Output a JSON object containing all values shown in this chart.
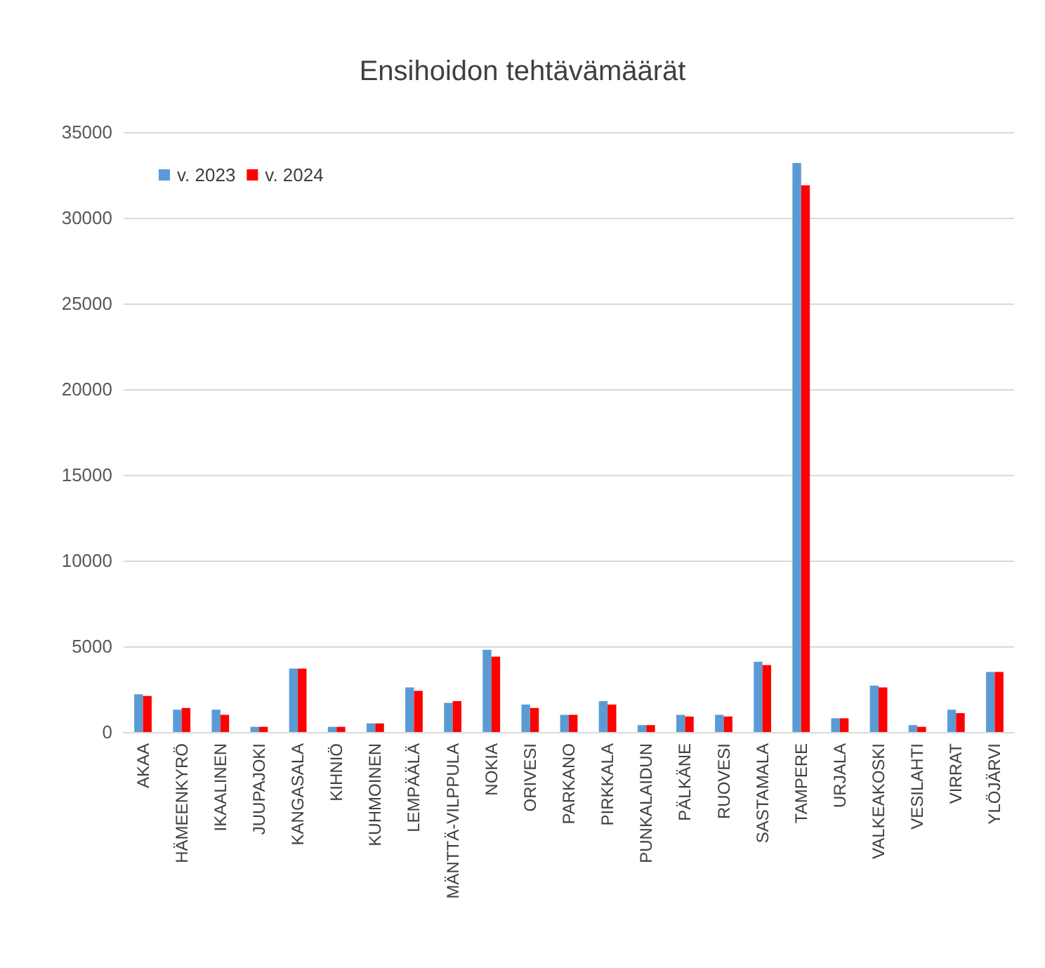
{
  "chart_data": {
    "type": "bar",
    "title": "Ensihoidon tehtävämäärät",
    "categories": [
      "AKAA",
      "HÄMEENKYRÖ",
      "IKAALINEN",
      "JUUPAJOKI",
      "KANGASALA",
      "KIHNIÖ",
      "KUHMOINEN",
      "LEMPÄÄLÄ",
      "MÄNTTÄ-VILPPULA",
      "NOKIA",
      "ORIVESI",
      "PARKANO",
      "PIRKKALA",
      "PUNKALAIDUN",
      "PÄLKÄNE",
      "RUOVESI",
      "SASTAMALA",
      "TAMPERE",
      "URJALA",
      "VALKEAKOSKI",
      "VESILAHTI",
      "VIRRAT",
      "YLÖJÄRVI"
    ],
    "series": [
      {
        "name": "v. 2023",
        "color": "#5b9bd5",
        "values": [
          2200,
          1300,
          1300,
          300,
          3700,
          300,
          500,
          2600,
          1700,
          4800,
          1600,
          1000,
          1800,
          400,
          1000,
          1000,
          4100,
          33200,
          800,
          2700,
          400,
          1300,
          3500
        ]
      },
      {
        "name": "v. 2024",
        "color": "#ff0000",
        "values": [
          2100,
          1400,
          1000,
          300,
          3700,
          300,
          500,
          2400,
          1800,
          4400,
          1400,
          1000,
          1600,
          400,
          900,
          900,
          3900,
          31900,
          800,
          2600,
          300,
          1100,
          3500
        ]
      }
    ],
    "ylim": [
      0,
      35000
    ],
    "yticks": [
      0,
      5000,
      10000,
      15000,
      20000,
      25000,
      30000,
      35000
    ],
    "grid": "y",
    "legend": "top left"
  }
}
